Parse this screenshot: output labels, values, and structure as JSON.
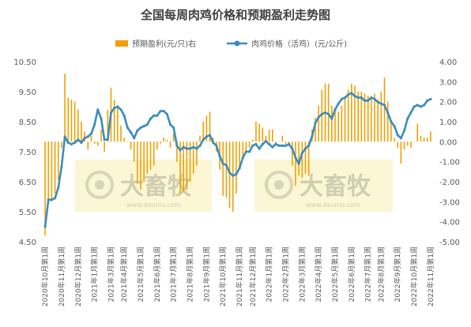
{
  "chart_data": {
    "type": "bar+line",
    "title": "全国每周肉鸡价格和预期盈利走势图",
    "series": [
      {
        "name": "预期盈利(元/只)右",
        "type": "bar",
        "axis": "right",
        "color": "#F0A000"
      },
      {
        "name": "肉鸡价格（活鸡）(元/公斤)",
        "type": "line",
        "axis": "left",
        "color": "#3D8DBE"
      }
    ],
    "left_axis": {
      "ylim": [
        4.5,
        10.5
      ],
      "ticks": [
        "4.50",
        "5.50",
        "6.50",
        "7.50",
        "8.50",
        "9.50",
        "10.50"
      ]
    },
    "right_axis": {
      "ylim": [
        -5,
        4
      ],
      "ticks": [
        "-5.00",
        "-4.00",
        "-3.00",
        "-2.00",
        "-1.00",
        "0.00",
        "1.00",
        "2.00",
        "3.00",
        "4.00"
      ]
    },
    "x_labels": [
      "2020年10月第1周",
      "2020年11月第1周",
      "2020年12月第1周",
      "2021年1月第1周",
      "2021年3月第1周",
      "2021年4月第1周",
      "2021年5月第1周",
      "2021年6月第1周",
      "2021年7月第1周",
      "2021年8月第1周",
      "2021年9月第1周",
      "2021年10月第1周",
      "2021年11月第1周",
      "2021年12月第1周",
      "2022年1月第1周",
      "2022年2月第1周",
      "2022年3月第1周",
      "2022年4月第1周",
      "2022年5月第1周",
      "2022年6月第1周",
      "2022年7月第1周",
      "2022年8月第1周",
      "2022年9月第1周",
      "2022年10月第1周",
      "2022年11月第1周"
    ],
    "price": [
      5.0,
      5.9,
      5.9,
      5.95,
      6.3,
      7.0,
      8.0,
      7.8,
      7.75,
      7.8,
      7.9,
      7.8,
      7.95,
      8.0,
      8.1,
      8.4,
      8.9,
      8.6,
      7.9,
      7.9,
      8.8,
      8.95,
      9.0,
      8.9,
      8.7,
      8.3,
      8.15,
      7.95,
      8.2,
      8.3,
      8.35,
      8.4,
      8.6,
      8.7,
      8.7,
      8.85,
      8.85,
      8.75,
      8.4,
      8.3,
      7.7,
      7.55,
      7.65,
      7.6,
      7.6,
      7.65,
      7.6,
      7.7,
      7.9,
      8.0,
      8.05,
      7.8,
      7.7,
      7.35,
      7.1,
      7.05,
      6.8,
      6.7,
      6.75,
      6.95,
      7.3,
      7.5,
      7.5,
      7.7,
      7.75,
      7.6,
      7.75,
      7.85,
      7.75,
      7.65,
      7.75,
      7.7,
      7.7,
      7.7,
      7.75,
      7.6,
      7.3,
      7.1,
      7.45,
      7.6,
      7.7,
      8.0,
      8.45,
      8.65,
      8.75,
      8.8,
      8.75,
      8.6,
      8.9,
      9.1,
      9.25,
      9.3,
      9.4,
      9.45,
      9.35,
      9.3,
      9.3,
      9.2,
      9.2,
      9.3,
      9.25,
      9.15,
      9.1,
      9.05,
      8.8,
      8.5,
      8.35,
      8.05,
      7.95,
      8.2,
      8.6,
      8.8,
      9.0,
      9.05,
      9.0,
      9.05,
      9.2,
      9.25
    ],
    "profit": [
      -4.7,
      -3.0,
      -3.0,
      -2.6,
      -1.9,
      -0.3,
      3.4,
      2.2,
      2.1,
      2.0,
      1.6,
      1.0,
      0.5,
      -0.4,
      0.3,
      -0.1,
      -0.2,
      0.6,
      -0.5,
      1.6,
      2.7,
      2.1,
      1.8,
      0.8,
      0.2,
      0.0,
      -0.4,
      -1.0,
      -2.1,
      -2.4,
      -2.0,
      -1.6,
      -1.4,
      -1.2,
      -0.4,
      -0.1,
      0.2,
      0.1,
      -0.3,
      0.4,
      -1.0,
      -2.6,
      -2.5,
      -2.4,
      -2.0,
      -1.6,
      -1.2,
      0.3,
      1.0,
      1.3,
      1.5,
      0.2,
      -0.5,
      -1.4,
      -2.7,
      -2.8,
      -3.3,
      -3.5,
      -2.6,
      -1.3,
      -0.8,
      -0.5,
      -0.3,
      0.1,
      1.0,
      0.9,
      0.7,
      0.3,
      0.6,
      0.6,
      -0.2,
      0.0,
      0.3,
      -0.1,
      -0.2,
      -1.2,
      -2.2,
      -1.7,
      -1.8,
      -1.6,
      -1.7,
      0.6,
      1.2,
      1.8,
      2.6,
      2.9,
      2.9,
      1.8,
      1.6,
      1.5,
      1.8,
      2.2,
      2.6,
      2.9,
      2.8,
      2.5,
      2.5,
      2.4,
      2.3,
      2.2,
      2.4,
      2.1,
      2.5,
      3.2,
      2.0,
      1.0,
      0.2,
      -0.3,
      -1.1,
      -0.4,
      -0.2,
      -0.3,
      0.0,
      0.9,
      0.3,
      0.2,
      0.2,
      0.5
    ]
  },
  "watermark": {
    "text": "大畜牧",
    "url": "www.dxumu.com"
  }
}
